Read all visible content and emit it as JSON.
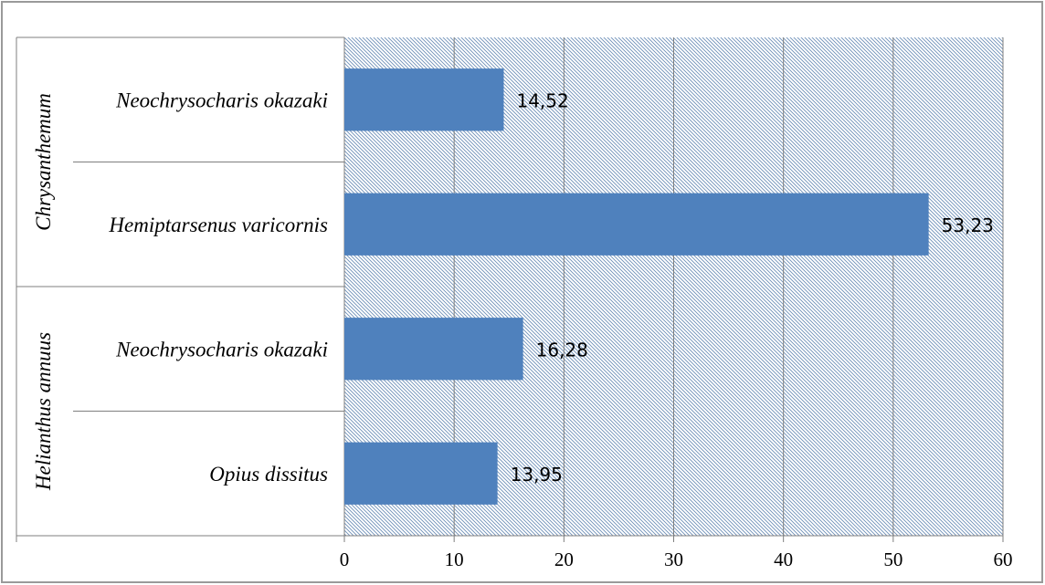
{
  "chart_data": {
    "type": "bar",
    "orientation": "horizontal",
    "groups": [
      {
        "label": "Chrysanthemum",
        "categories": [
          "Neochrysocharis okazaki",
          "Hemiptarsenus varicornis"
        ],
        "values": [
          14.52,
          53.23
        ],
        "value_labels": [
          "14,52",
          "53,23"
        ]
      },
      {
        "label": "Helianthus annuus",
        "categories": [
          "Neochrysocharis okazaki",
          "Opius dissitus"
        ],
        "values": [
          16.28,
          13.95
        ],
        "value_labels": [
          "16,28",
          "13,95"
        ]
      }
    ],
    "x_ticks": [
      "0",
      "10",
      "20",
      "30",
      "40",
      "50",
      "60"
    ],
    "xlim": [
      0,
      60
    ],
    "grid": true,
    "legend": "none",
    "colors": {
      "bar": "#4f81bd",
      "plot_hatch": "#6d8fb8",
      "grid": "#7f7f7f",
      "axis": "#7f7f7f",
      "frame": "#9a9a9a"
    }
  }
}
